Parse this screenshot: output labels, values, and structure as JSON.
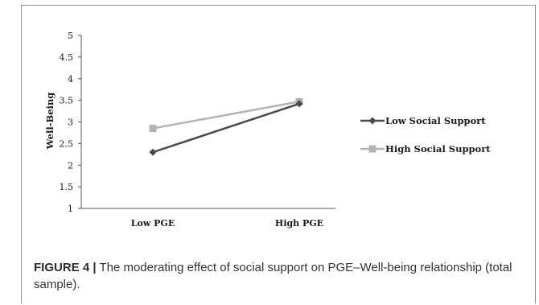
{
  "chart_data": {
    "type": "line",
    "categories": [
      "Low PGE",
      "High PGE"
    ],
    "ylabel": "Well-Being",
    "xlabel": "",
    "ylim": [
      1,
      5
    ],
    "yticks": [
      "1",
      "1.5",
      "2",
      "2.5",
      "3",
      "3.5",
      "4",
      "4.5",
      "5"
    ],
    "grid": false,
    "legend_position": "right",
    "series": [
      {
        "name": "Low Social Support",
        "values": [
          2.3,
          3.42
        ],
        "color": "#4a4a4a",
        "marker": "diamond"
      },
      {
        "name": "High Social Support",
        "values": [
          2.85,
          3.47
        ],
        "color": "#b3b3b3",
        "marker": "square"
      }
    ]
  },
  "caption": {
    "label": "FIGURE 4 |",
    "text": " The moderating effect of social support on PGE–Well-being relationship (total sample)."
  }
}
